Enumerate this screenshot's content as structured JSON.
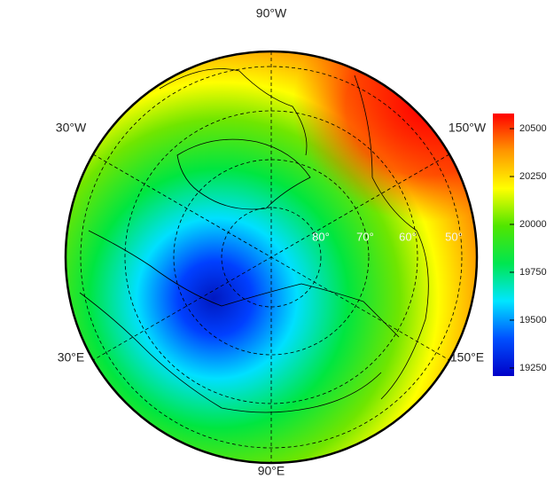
{
  "map": {
    "longitude_labels": [
      "90°W",
      "30°W",
      "150°W",
      "30°E",
      "150°E",
      "90°E"
    ],
    "latitude_labels": [
      "80°",
      "70°",
      "60°",
      "50°"
    ],
    "colorbar": {
      "lim": [
        19208,
        20579
      ],
      "ticks": [
        19250,
        19500,
        19750,
        20000,
        20250,
        20500
      ],
      "colors": [
        "#0000c8",
        "#0050ff",
        "#00e6ff",
        "#00e650",
        "#50e600",
        "#ffff00",
        "#ff9600",
        "#ff0000"
      ]
    }
  }
}
